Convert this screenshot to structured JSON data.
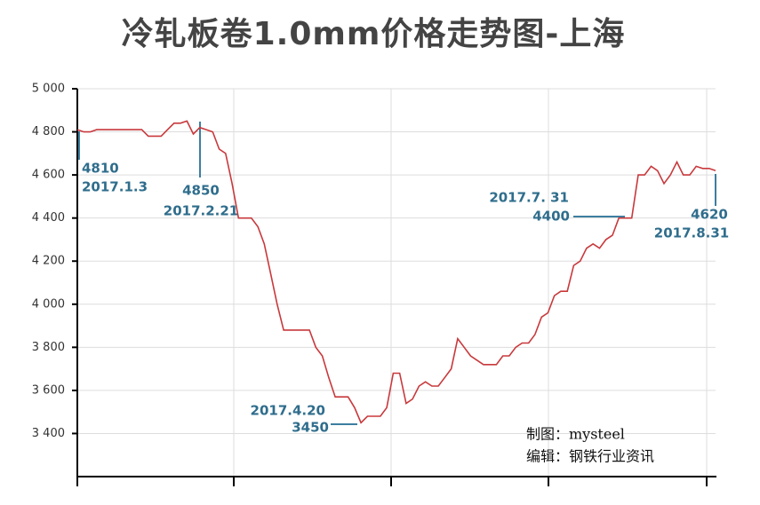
{
  "chart_data": {
    "type": "line",
    "title": "冷轧板卷1.0mm价格走势图-上海",
    "values": [
      4810,
      4800,
      4800,
      4810,
      4810,
      4810,
      4810,
      4810,
      4810,
      4810,
      4810,
      4780,
      4780,
      4780,
      4810,
      4840,
      4840,
      4850,
      4790,
      4820,
      4810,
      4800,
      4720,
      4700,
      4560,
      4400,
      4400,
      4400,
      4360,
      4280,
      4140,
      4000,
      3880,
      3880,
      3880,
      3880,
      3880,
      3800,
      3760,
      3660,
      3570,
      3570,
      3570,
      3520,
      3450,
      3480,
      3480,
      3480,
      3520,
      3680,
      3680,
      3540,
      3560,
      3620,
      3640,
      3620,
      3620,
      3660,
      3700,
      3840,
      3800,
      3760,
      3740,
      3720,
      3720,
      3720,
      3760,
      3760,
      3800,
      3820,
      3820,
      3860,
      3940,
      3960,
      4040,
      4060,
      4060,
      4180,
      4200,
      4260,
      4280,
      4260,
      4300,
      4320,
      4400,
      4400,
      4400,
      4600,
      4600,
      4640,
      4620,
      4560,
      4600,
      4660,
      4600,
      4600,
      4640,
      4630,
      4630,
      4620
    ],
    "color": "#c8393c",
    "ylim": [
      3200,
      5000
    ],
    "yticks": [
      {
        "value": 3400,
        "label": "3 400"
      },
      {
        "value": 3600,
        "label": "3 600"
      },
      {
        "value": 3800,
        "label": "3 800"
      },
      {
        "value": 4000,
        "label": "4 000"
      },
      {
        "value": 4200,
        "label": "4 200"
      },
      {
        "value": 4400,
        "label": "4 400"
      },
      {
        "value": 4600,
        "label": "4 600"
      },
      {
        "value": 4800,
        "label": "4 800"
      },
      {
        "value": 5000,
        "label": "5 000"
      }
    ],
    "grid": true,
    "annotations": [
      "4810",
      "2017.1.3",
      "4850",
      "2017.2.21",
      "2017.4.20",
      "3450",
      "2017.7. 31",
      "4400",
      "4620",
      "2017.8.31"
    ],
    "credits": [
      "制图：mysteel",
      "编辑：钢铁行业资讯"
    ]
  }
}
